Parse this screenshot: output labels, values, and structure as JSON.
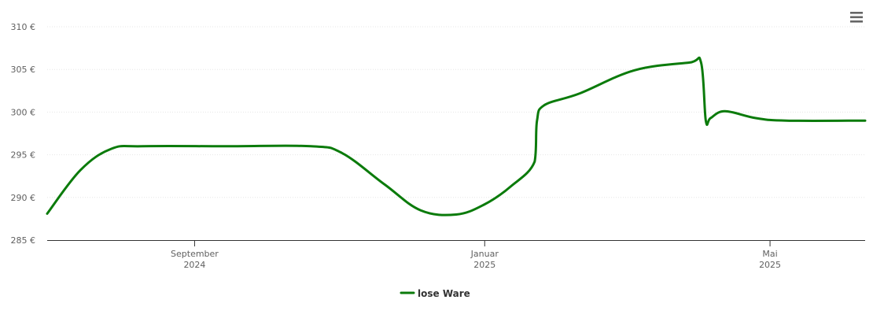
{
  "chart_data": {
    "type": "line",
    "title": "",
    "xlabel": "",
    "ylabel": "",
    "ylim": [
      285,
      310
    ],
    "grid": true,
    "legend_position": "bottom-center",
    "y_ticks": [
      "285 €",
      "290 €",
      "295 €",
      "300 €",
      "305 €",
      "310 €"
    ],
    "x_ticks": [
      {
        "date": "2024-09-01",
        "month": "September",
        "year": "2024"
      },
      {
        "date": "2025-01-01",
        "month": "Januar",
        "year": "2025"
      },
      {
        "date": "2025-05-01",
        "month": "Mai",
        "year": "2025"
      }
    ],
    "x_range": [
      "2024-07-01",
      "2025-06-10"
    ],
    "series": [
      {
        "name": "lose Ware",
        "color": "#0b7b0b",
        "x": [
          "2024-07-01",
          "2024-07-15",
          "2024-07-28",
          "2024-08-10",
          "2024-09-15",
          "2024-10-20",
          "2024-11-02",
          "2024-11-20",
          "2024-12-05",
          "2024-12-20",
          "2025-01-01",
          "2025-01-12",
          "2025-01-22",
          "2025-01-23",
          "2025-01-26",
          "2025-02-10",
          "2025-03-05",
          "2025-03-28",
          "2025-04-02",
          "2025-04-04",
          "2025-04-06",
          "2025-04-12",
          "2025-04-25",
          "2025-05-08",
          "2025-06-10"
        ],
        "values": [
          288.1,
          293.2,
          295.7,
          296.0,
          296.0,
          296.0,
          295.2,
          291.5,
          288.5,
          288.0,
          289.2,
          291.3,
          294.2,
          299.0,
          300.8,
          302.2,
          304.9,
          305.8,
          305.8,
          299.0,
          299.3,
          300.1,
          299.3,
          299.0,
          299.0
        ]
      }
    ]
  },
  "menu": {
    "icon": "hamburger-menu-icon"
  }
}
